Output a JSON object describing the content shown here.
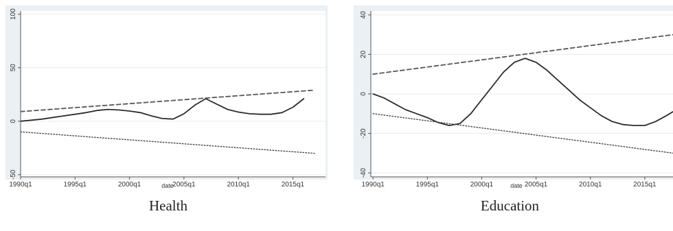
{
  "chart_data": [
    {
      "type": "line",
      "caption": "Health",
      "xlabel": "date",
      "x_ticks": [
        "1990q1",
        "1995q1",
        "2000q1",
        "2005q1",
        "2010q1",
        "2015q1"
      ],
      "xlim": [
        1990.0,
        2018.0
      ],
      "ylim": [
        -52,
        103
      ],
      "y_ticks": [
        "-50",
        "0",
        "50",
        "100"
      ],
      "y_tick_values": [
        -50,
        0,
        50,
        100
      ],
      "series": [
        {
          "style": "solid",
          "x": [
            1990.0,
            1991.0,
            1992.0,
            1993.0,
            1994.0,
            1995.0,
            1996.0,
            1997.0,
            1998.0,
            1999.0,
            2000.0,
            2001.0,
            2002.0,
            2003.0,
            2004.0,
            2005.0,
            2006.0,
            2007.0,
            2008.0,
            2009.0,
            2010.0,
            2011.0,
            2012.0,
            2013.0,
            2014.0,
            2015.0,
            2016.0
          ],
          "y": [
            0,
            1,
            2,
            3.5,
            5,
            6.5,
            8,
            10,
            11,
            10.5,
            9.5,
            8,
            5,
            2.5,
            2,
            7,
            15,
            21,
            16,
            11,
            8.5,
            7,
            6.5,
            6.5,
            8,
            13,
            21
          ]
        },
        {
          "style": "dashed",
          "x": [
            1990.0,
            2017.0
          ],
          "y": [
            9,
            29
          ]
        },
        {
          "style": "dotted",
          "x": [
            1990.0,
            2017.0
          ],
          "y": [
            -10,
            -30
          ]
        }
      ]
    },
    {
      "type": "line",
      "caption": "Education",
      "xlabel": "date",
      "x_ticks": [
        "1990q1",
        "1995q1",
        "2000q1",
        "2005q1",
        "2010q1",
        "2015q1"
      ],
      "xlim": [
        1989.8,
        2017.6
      ],
      "ylim": [
        -42,
        42
      ],
      "y_ticks": [
        "-40",
        "-20",
        "0",
        "20",
        "40"
      ],
      "y_tick_values": [
        -40,
        -20,
        0,
        20,
        40
      ],
      "series": [
        {
          "style": "solid",
          "x": [
            1990.0,
            1991.0,
            1992.0,
            1993.0,
            1994.0,
            1995.0,
            1996.0,
            1997.0,
            1998.0,
            1999.0,
            2000.0,
            2001.0,
            2002.0,
            2003.0,
            2004.0,
            2005.0,
            2006.0,
            2007.0,
            2008.0,
            2009.0,
            2010.0,
            2011.0,
            2012.0,
            2013.0,
            2014.0,
            2015.0,
            2016.0,
            2017.0,
            2017.6
          ],
          "y": [
            0,
            -2,
            -5,
            -8,
            -10,
            -12,
            -14.5,
            -16,
            -15,
            -10,
            -3,
            4,
            11,
            16,
            18,
            16,
            12,
            7,
            2,
            -3,
            -7,
            -11,
            -14,
            -15.5,
            -16,
            -16,
            -14,
            -11,
            -9
          ]
        },
        {
          "style": "dashed",
          "x": [
            1990.0,
            2017.6
          ],
          "y": [
            10,
            30
          ]
        },
        {
          "style": "dotted",
          "x": [
            1990.0,
            2017.6
          ],
          "y": [
            -10,
            -30
          ]
        }
      ]
    }
  ]
}
